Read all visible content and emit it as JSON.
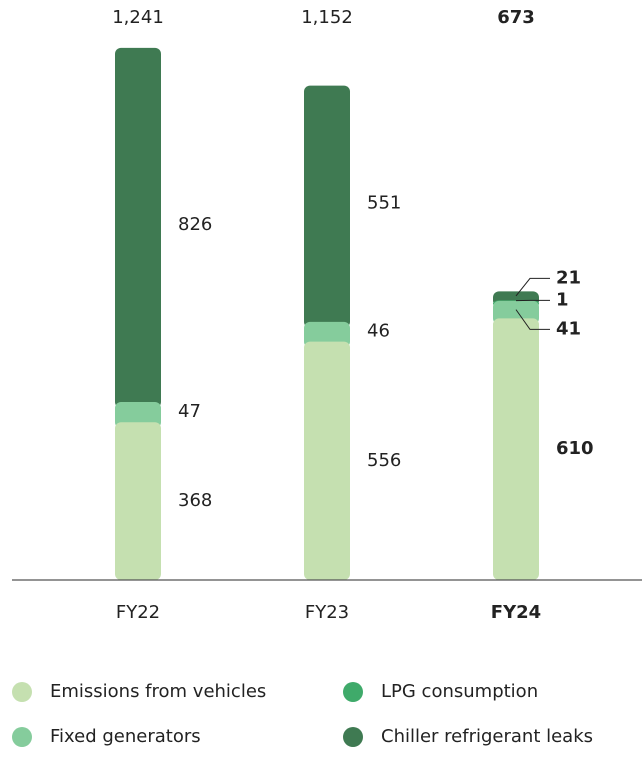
{
  "chart_data": {
    "type": "stacked_bar",
    "categories": [
      "FY22",
      "FY23",
      "FY24"
    ],
    "series": [
      {
        "name": "Emissions from vehicles",
        "color": "#c5e0b0",
        "values": [
          368,
          556,
          610
        ]
      },
      {
        "name": "Fixed generators",
        "color": "#85cc9c",
        "values": [
          47,
          46,
          41
        ]
      },
      {
        "name": "LPG consumption",
        "color": "#3faa6a",
        "values": [
          null,
          null,
          1
        ]
      },
      {
        "name": "Chiller refrigerant leaks",
        "color": "#3f7a52",
        "values": [
          826,
          551,
          21
        ]
      }
    ],
    "totals": {
      "values": [
        1241,
        1152,
        673
      ],
      "value_labels": [
        "1,241",
        "1,152",
        "673"
      ]
    },
    "ylim": [
      0,
      1250
    ],
    "highlight": "FY24"
  }
}
